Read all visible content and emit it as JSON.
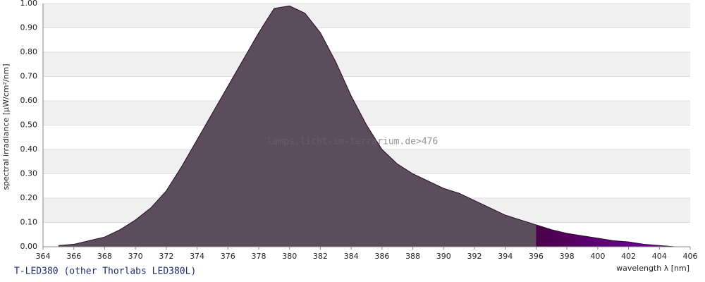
{
  "chart_data": {
    "type": "area",
    "title": "T-LED380 (other Thorlabs LED380L)",
    "watermark": "lamps.licht-im-terrarium.de>476",
    "ylabel": "spectral irradiance [µW/cm²/nm]",
    "xlabel": "wavelength λ [nm]",
    "x": [
      365,
      366,
      367,
      368,
      369,
      370,
      371,
      372,
      373,
      374,
      375,
      376,
      377,
      378,
      379,
      380,
      381,
      382,
      383,
      384,
      385,
      386,
      387,
      388,
      389,
      390,
      391,
      392,
      393,
      394,
      395,
      396,
      397,
      398,
      399,
      400,
      401,
      402,
      403,
      404,
      405
    ],
    "values": [
      0.005,
      0.01,
      0.025,
      0.04,
      0.07,
      0.11,
      0.16,
      0.23,
      0.33,
      0.44,
      0.55,
      0.66,
      0.77,
      0.88,
      0.98,
      0.99,
      0.96,
      0.88,
      0.76,
      0.62,
      0.5,
      0.4,
      0.34,
      0.3,
      0.27,
      0.24,
      0.22,
      0.19,
      0.16,
      0.13,
      0.11,
      0.09,
      0.07,
      0.055,
      0.045,
      0.035,
      0.025,
      0.02,
      0.01,
      0.005,
      0.0
    ],
    "color": "#5c4d5c",
    "xlim": [
      364,
      406
    ],
    "xticks": [
      364,
      366,
      368,
      370,
      372,
      374,
      376,
      378,
      380,
      382,
      384,
      386,
      388,
      390,
      392,
      394,
      396,
      398,
      400,
      402,
      404,
      406
    ],
    "ylim": [
      0,
      1
    ],
    "yticks": [
      {
        "value": 0,
        "label": "0.00"
      },
      {
        "value": 0.1,
        "label": "0.10"
      },
      {
        "value": 0.2,
        "label": "0.20"
      },
      {
        "value": 0.3,
        "label": "0.30"
      },
      {
        "value": 0.4,
        "label": "0.40"
      },
      {
        "value": 0.5,
        "label": "0.50"
      },
      {
        "value": 0.6,
        "label": "0.60"
      },
      {
        "value": 0.7,
        "label": "0.70"
      },
      {
        "value": 0.8,
        "label": "0.80"
      },
      {
        "value": 0.9,
        "label": "0.90"
      },
      {
        "value": 1,
        "label": "1.00"
      }
    ],
    "grid": true
  }
}
